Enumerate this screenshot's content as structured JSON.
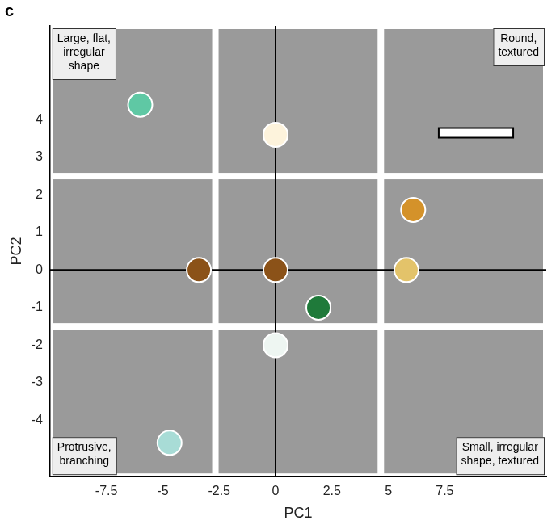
{
  "chart_data": {
    "type": "scatter",
    "title": "c",
    "x_label": "PC1",
    "y_label": "PC2",
    "x": [
      -6.0,
      0,
      6.1,
      -3.4,
      0,
      5.8,
      1.9,
      0,
      -4.7
    ],
    "values": [
      4.4,
      3.6,
      1.6,
      0,
      0,
      0,
      -1.0,
      -2.0,
      -4.6
    ],
    "colors": [
      "#5fc8a4",
      "#fdf3dc",
      "#d4922a",
      "#8b5218",
      "#8b5218",
      "#e3c36a",
      "#1f7a3a",
      "#eef6f2",
      "#a8dcd6"
    ],
    "xlim": [
      -10,
      12
    ],
    "ylim": [
      -5.5,
      6.5
    ],
    "xticks": [
      -7.5,
      -5,
      -2.5,
      0,
      2.5,
      5,
      7.5
    ],
    "yticks": [
      -4,
      -3,
      -2,
      -1,
      0,
      1,
      2,
      3,
      4
    ],
    "grid": false,
    "marker": "circle",
    "annotations": [
      [
        "Large, flat,",
        "irregular",
        "shape"
      ],
      [
        "Round,",
        "textured"
      ],
      [
        "Protrusive,",
        "branching"
      ],
      [
        "Small, irregular",
        "shape, textured"
      ]
    ]
  }
}
